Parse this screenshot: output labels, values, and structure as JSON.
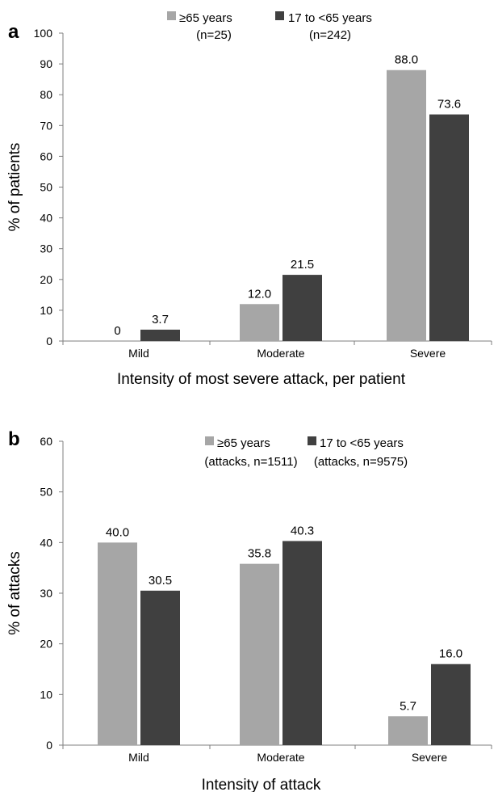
{
  "chart_data": [
    {
      "panel_label": "a",
      "type": "bar",
      "categories": [
        "Mild",
        "Moderate",
        "Severe"
      ],
      "series": [
        {
          "name": "≥65 years",
          "name_line2": "(n=25)",
          "color": "#a6a6a6",
          "values": [
            0,
            12.0,
            88.0
          ],
          "labels": [
            "0",
            "12.0",
            "88.0"
          ]
        },
        {
          "name": "17 to <65 years",
          "name_line2": "(n=242)",
          "color": "#404040",
          "values": [
            3.7,
            21.5,
            73.6
          ],
          "labels": [
            "3.7",
            "21.5",
            "73.6"
          ]
        }
      ],
      "xlabel": "Intensity of most severe attack, per patient",
      "ylabel": "% of patients",
      "ylim": [
        0,
        100
      ],
      "yticks": [
        0,
        10,
        20,
        30,
        40,
        50,
        60,
        70,
        80,
        90,
        100
      ],
      "grid": false,
      "legend": "top-center"
    },
    {
      "panel_label": "b",
      "type": "bar",
      "categories": [
        "Mild",
        "Moderate",
        "Severe"
      ],
      "series": [
        {
          "name": "≥65 years",
          "name_line2": "(attacks, n=1511)",
          "color": "#a6a6a6",
          "values": [
            40.0,
            35.8,
            5.7
          ],
          "labels": [
            "40.0",
            "35.8",
            "5.7"
          ]
        },
        {
          "name": "17 to <65 years",
          "name_line2": "(attacks, n=9575)",
          "color": "#404040",
          "values": [
            30.5,
            40.3,
            16.0
          ],
          "labels": [
            "30.5",
            "40.3",
            "16.0"
          ]
        }
      ],
      "xlabel": "Intensity of attack",
      "ylabel": "% of attacks",
      "ylim": [
        0,
        60
      ],
      "yticks": [
        0,
        10,
        20,
        30,
        40,
        50,
        60
      ],
      "grid": false,
      "legend": "top-right"
    }
  ]
}
